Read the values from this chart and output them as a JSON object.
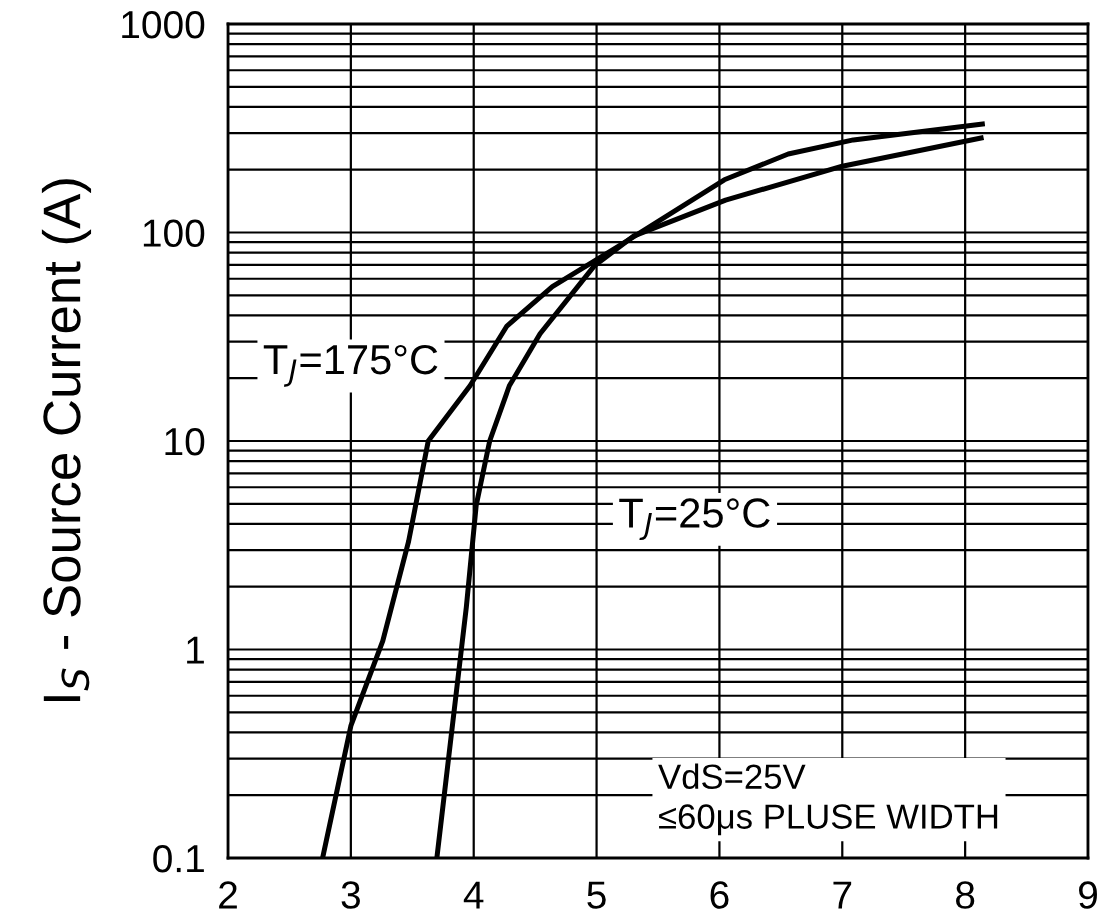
{
  "chart_data": {
    "type": "line",
    "ylabel": "I$_{S}$ - Source Current (A)",
    "series": [
      {
        "color": "#000000",
        "x": [
          2.77,
          3.0,
          3.26,
          3.47,
          3.63,
          3.97,
          4.27,
          4.64,
          5.18,
          6.04,
          6.56,
          7.09,
          8.14
        ],
        "values": [
          0.1,
          0.43,
          1.1,
          3.3,
          10,
          18.4,
          35.6,
          55,
          86,
          179,
          238,
          278,
          331
        ]
      },
      {
        "color": "#000000",
        "x": [
          3.7,
          3.94,
          4.02,
          4.13,
          4.29,
          4.54,
          4.98,
          5.3,
          6.05,
          7.0,
          8.13
        ],
        "values": [
          0.1,
          1.6,
          4.9,
          10,
          18.4,
          32.7,
          69,
          96,
          143,
          208,
          284
        ]
      }
    ],
    "annotations": [
      "T$_{J}$=175°C",
      "T$_{J}$=25°C",
      "VdS=25V\n≤60μs PLUSE WIDTH"
    ],
    "log": "y",
    "xlim": [
      2,
      9
    ],
    "xticks": [
      2,
      3,
      4,
      5,
      6,
      7,
      8,
      9
    ],
    "ylim": [
      0.1,
      1000
    ],
    "yticks": [
      0.1,
      1,
      10,
      100,
      1000
    ],
    "grid": true,
    "marker": "none",
    "line_style": "solid"
  }
}
